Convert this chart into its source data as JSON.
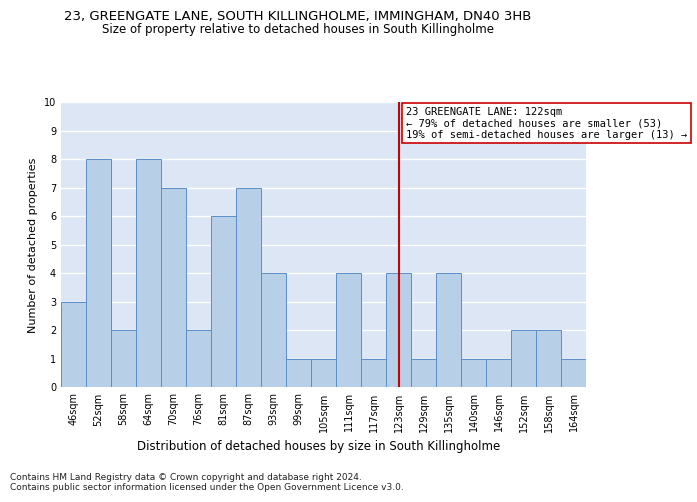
{
  "title": "23, GREENGATE LANE, SOUTH KILLINGHOLME, IMMINGHAM, DN40 3HB",
  "subtitle": "Size of property relative to detached houses in South Killingholme",
  "xlabel": "Distribution of detached houses by size in South Killingholme",
  "ylabel": "Number of detached properties",
  "categories": [
    "46sqm",
    "52sqm",
    "58sqm",
    "64sqm",
    "70sqm",
    "76sqm",
    "81sqm",
    "87sqm",
    "93sqm",
    "99sqm",
    "105sqm",
    "111sqm",
    "117sqm",
    "123sqm",
    "129sqm",
    "135sqm",
    "140sqm",
    "146sqm",
    "152sqm",
    "158sqm",
    "164sqm"
  ],
  "values": [
    3,
    8,
    2,
    8,
    7,
    2,
    6,
    7,
    4,
    1,
    1,
    4,
    1,
    4,
    1,
    4,
    1,
    1,
    2,
    2,
    1
  ],
  "bar_color": "#b8cfe8",
  "bar_edgecolor": "#5b8fc9",
  "bg_color": "#dce6f5",
  "grid_color": "#ffffff",
  "vline_x": 13,
  "vline_color": "#cc0000",
  "annotation_text": "23 GREENGATE LANE: 122sqm\n← 79% of detached houses are smaller (53)\n19% of semi-detached houses are larger (13) →",
  "annotation_box_color": "#cc0000",
  "ylim": [
    0,
    10
  ],
  "yticks": [
    0,
    1,
    2,
    3,
    4,
    5,
    6,
    7,
    8,
    9,
    10
  ],
  "footnote": "Contains HM Land Registry data © Crown copyright and database right 2024.\nContains public sector information licensed under the Open Government Licence v3.0.",
  "title_fontsize": 9.5,
  "subtitle_fontsize": 8.5,
  "ylabel_fontsize": 8,
  "xlabel_fontsize": 8.5,
  "tick_fontsize": 7,
  "annot_fontsize": 7.5,
  "footnote_fontsize": 6.5
}
